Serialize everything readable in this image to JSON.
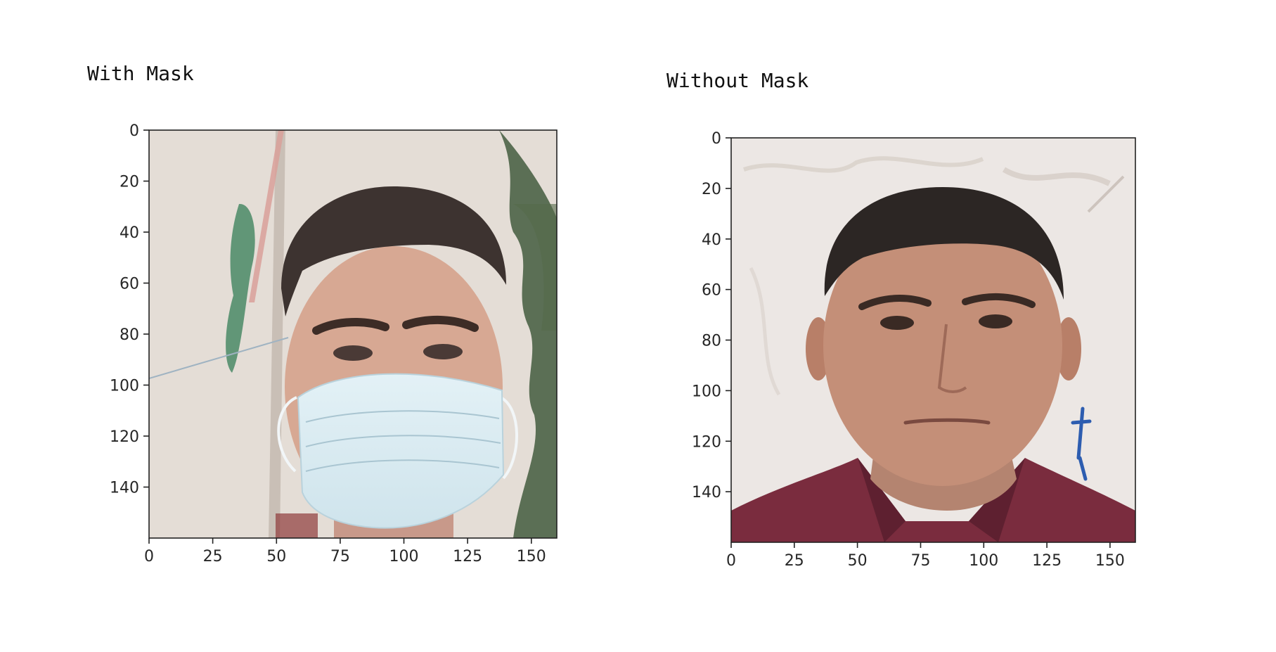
{
  "cells": [
    {
      "label": "With Mask",
      "image": {
        "subject": "young man with short dark hair wearing a light blue surgical face mask",
        "background_color": "#e4ddd6",
        "skin_color": "#d7a893",
        "hair_color": "#3d3330",
        "mask_color": "#d7eaf1",
        "foliage_color": "#2e4a2a",
        "flag_green": "#4a8a66",
        "flag_red": "#d9a09a"
      },
      "x_ticks": [
        "0",
        "25",
        "50",
        "75",
        "100",
        "125",
        "150"
      ],
      "y_ticks": [
        "0",
        "20",
        "40",
        "60",
        "80",
        "100",
        "120",
        "140"
      ]
    },
    {
      "label": "Without Mask",
      "image": {
        "subject": "man with short dark hair and a maroon collared shirt, no face mask",
        "background_color": "#ece7e4",
        "skin_color": "#c48f78",
        "hair_color": "#2c2624",
        "shirt_color": "#7a2c3e"
      },
      "x_ticks": [
        "0",
        "25",
        "50",
        "75",
        "100",
        "125",
        "150"
      ],
      "y_ticks": [
        "0",
        "20",
        "40",
        "60",
        "80",
        "100",
        "120",
        "140"
      ]
    }
  ],
  "axis_range": [
    0,
    160
  ]
}
